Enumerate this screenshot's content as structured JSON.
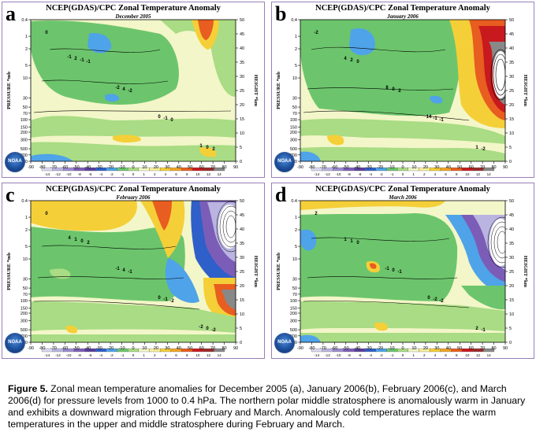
{
  "chart_data": [
    {
      "type": "heatmap",
      "panel_letter": "a",
      "title": "NCEP(GDAS)/CPC Zonal Temperature Anomaly",
      "subtitle": "December 2005",
      "ylabel": "PRESSURE *mb",
      "y2label": "HEIGHT *km",
      "x_ticks": [
        "-90",
        "-80",
        "-70",
        "-60",
        "-50",
        "-40",
        "-30",
        "-20",
        "-10",
        "0",
        "10",
        "20",
        "30",
        "40",
        "50",
        "60",
        "70",
        "80",
        "90"
      ],
      "pressure_ticks": [
        "0.4",
        "1",
        "2",
        "5",
        "10",
        "30",
        "50",
        "70",
        "100",
        "150",
        "200",
        "300",
        "500",
        "700",
        "1000"
      ],
      "height_ticks": [
        "50",
        "45",
        "40",
        "35",
        "30",
        "25",
        "20",
        "15",
        "10",
        "5",
        "0"
      ],
      "colorbar_ticks": [
        "-14",
        "-12",
        "-10",
        "-8",
        "-6",
        "-4",
        "-2",
        "-1",
        "0",
        "1",
        "2",
        "4",
        "6",
        "8",
        "10",
        "12",
        "14"
      ],
      "contour_labels": [
        "0",
        "-1",
        "-2",
        "0",
        "2",
        "-1",
        "4",
        "-1",
        "0",
        "2",
        "-2",
        "0",
        "1",
        "-1"
      ]
    },
    {
      "type": "heatmap",
      "panel_letter": "b",
      "title": "NCEP(GDAS)/CPC Zonal Temperature Anomaly",
      "subtitle": "January 2006",
      "ylabel": "PRESSURE *mb",
      "y2label": "HEIGHT *km",
      "x_ticks": [
        "-90",
        "-80",
        "-70",
        "-60",
        "-50",
        "-40",
        "-30",
        "-20",
        "-10",
        "0",
        "10",
        "20",
        "30",
        "40",
        "50",
        "60",
        "70",
        "80",
        "90"
      ],
      "pressure_ticks": [
        "0.4",
        "1",
        "2",
        "5",
        "10",
        "30",
        "50",
        "70",
        "100",
        "150",
        "200",
        "300",
        "500",
        "700",
        "1000"
      ],
      "height_ticks": [
        "50",
        "45",
        "40",
        "35",
        "30",
        "25",
        "20",
        "15",
        "10",
        "5",
        "0"
      ],
      "colorbar_ticks": [
        "-14",
        "-12",
        "-10",
        "-8",
        "-6",
        "-4",
        "-2",
        "-1",
        "0",
        "1",
        "2",
        "4",
        "6",
        "8",
        "10",
        "12",
        "14"
      ],
      "contour_labels": [
        "-2",
        "0",
        "2",
        "-1",
        "-2",
        "2",
        "0",
        "-1",
        "1",
        "4",
        "8",
        "14"
      ]
    },
    {
      "type": "heatmap",
      "panel_letter": "c",
      "title": "NCEP(GDAS)/CPC Zonal Temperature Anomaly",
      "subtitle": "February 2006",
      "ylabel": "PRESSURE *mb",
      "y2label": "HEIGHT *km",
      "x_ticks": [
        "-90",
        "-80",
        "-70",
        "-60",
        "-50",
        "-40",
        "-30",
        "-20",
        "-10",
        "0",
        "10",
        "20",
        "30",
        "40",
        "50",
        "60",
        "70",
        "80",
        "90"
      ],
      "pressure_ticks": [
        "0.4",
        "1",
        "2",
        "5",
        "10",
        "30",
        "50",
        "70",
        "100",
        "150",
        "200",
        "300",
        "500",
        "700",
        "1000"
      ],
      "height_ticks": [
        "50",
        "45",
        "40",
        "35",
        "30",
        "25",
        "20",
        "15",
        "10",
        "5",
        "0"
      ],
      "colorbar_ticks": [
        "-14",
        "-12",
        "-10",
        "-8",
        "-6",
        "-4",
        "-2",
        "-1",
        "0",
        "1",
        "2",
        "4",
        "6",
        "8",
        "10",
        "12",
        "14"
      ],
      "contour_labels": [
        "0",
        "2",
        "-1",
        "-2",
        "-2",
        "0",
        "4",
        "-1",
        "0",
        "1",
        "-1",
        "0",
        "-2",
        "4"
      ]
    },
    {
      "type": "heatmap",
      "panel_letter": "d",
      "title": "NCEP(GDAS)/CPC Zonal Temperature Anomaly",
      "subtitle": "March 2006",
      "ylabel": "PRESSURE *mb",
      "y2label": "HEIGHT *km",
      "x_ticks": [
        "-90",
        "-80",
        "-70",
        "-60",
        "-50",
        "-40",
        "-30",
        "-20",
        "-10",
        "0",
        "10",
        "20",
        "30",
        "40",
        "50",
        "60",
        "70",
        "80",
        "90"
      ],
      "pressure_ticks": [
        "0.4",
        "1",
        "2",
        "5",
        "10",
        "30",
        "50",
        "70",
        "100",
        "150",
        "200",
        "300",
        "500",
        "700",
        "1000"
      ],
      "height_ticks": [
        "50",
        "45",
        "40",
        "35",
        "30",
        "25",
        "20",
        "15",
        "10",
        "5",
        "0"
      ],
      "colorbar_ticks": [
        "-14",
        "-12",
        "-10",
        "-8",
        "-6",
        "-4",
        "-2",
        "-1",
        "0",
        "1",
        "2",
        "4",
        "6",
        "8",
        "10",
        "12",
        "14"
      ],
      "contour_labels": [
        "2",
        "0",
        "-1",
        "-2",
        "-1",
        "1",
        "0",
        "-2",
        "2",
        "1",
        "-1",
        "0"
      ]
    }
  ],
  "colorbar_colors": [
    "#d8d8f0",
    "#b9b4e0",
    "#9d8ad0",
    "#7b5db8",
    "#5a3d9e",
    "#2f5fc8",
    "#4fa3e8",
    "#6cc56c",
    "#a9dc84",
    "#f3f6c8",
    "#f7ef9c",
    "#f5cf38",
    "#f2a324",
    "#e85d20",
    "#c8191e",
    "#9c2a2a",
    "#888888"
  ],
  "logo_label": "NOAA",
  "caption": {
    "label": "Figure 5.",
    "text": " Zonal mean temperature anomalies for December 2005 (a), January 2006(b), February 2006(c), and March 2006(d) for pressure levels from 1000 to 0.4 hPa.  The northern polar middle stratosphere is anomalously warm in January and exhibits a downward migration through February and March.   Anomalously cold temperatures replace the warm temperatures in the upper and middle stratosphere during February and March."
  }
}
